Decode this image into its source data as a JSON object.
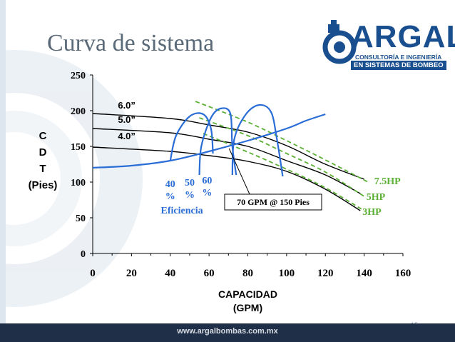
{
  "slide": {
    "title": "Curva de sistema",
    "footer_url": "www.argalbombas.com.mx",
    "page_number": "15",
    "logo": {
      "main": "ARGAL",
      "line1": "CONSULTORÍA E INGENIERÍA",
      "line2": "EN SISTEMAS DE BOMBEO"
    },
    "colors": {
      "navy": "#1f2f47",
      "brand_blue": "#1a4f8f",
      "efficiency_blue": "#2a6dd6",
      "green": "#5bb035"
    }
  },
  "chart_data": {
    "type": "line",
    "xlabel": [
      "CAPACIDAD",
      "(GPM)"
    ],
    "ylabel": [
      "C",
      "D",
      "T",
      "(Pies)"
    ],
    "xlim": [
      0,
      160
    ],
    "ylim": [
      0,
      250
    ],
    "x_ticks": [
      "0",
      "20",
      "40",
      "60",
      "80",
      "100",
      "120",
      "140",
      "160"
    ],
    "y_ticks": [
      "0",
      "50",
      "100",
      "150",
      "200",
      "250"
    ],
    "grid": false,
    "series": [
      {
        "name": "6.0”",
        "color": "#000000",
        "points": [
          [
            0,
            196
          ],
          [
            40,
            189
          ],
          [
            60,
            180
          ],
          [
            80,
            170
          ],
          [
            100,
            151
          ],
          [
            120,
            125
          ],
          [
            140,
            104
          ]
        ]
      },
      {
        "name": "5.0”",
        "color": "#000000",
        "points": [
          [
            0,
            175
          ],
          [
            40,
            169
          ],
          [
            60,
            160
          ],
          [
            80,
            150
          ],
          [
            100,
            130
          ],
          [
            120,
            110
          ],
          [
            138,
            84
          ]
        ]
      },
      {
        "name": "4.0”",
        "color": "#000000",
        "points": [
          [
            0,
            149
          ],
          [
            40,
            143
          ],
          [
            60,
            137
          ],
          [
            80,
            129
          ],
          [
            100,
            115
          ],
          [
            120,
            90
          ],
          [
            138,
            60
          ]
        ]
      },
      {
        "name": "7.5HP",
        "color": "#5bb035",
        "dashed": true,
        "points": [
          [
            53,
            213
          ],
          [
            80,
            184
          ],
          [
            100,
            158
          ],
          [
            120,
            131
          ],
          [
            142,
            100
          ]
        ]
      },
      {
        "name": "5HP",
        "color": "#5bb035",
        "dashed": true,
        "points": [
          [
            55,
            190
          ],
          [
            80,
            165
          ],
          [
            100,
            140
          ],
          [
            120,
            114
          ],
          [
            140,
            80
          ]
        ]
      },
      {
        "name": "3HP",
        "color": "#5bb035",
        "dashed": true,
        "points": [
          [
            57,
            168
          ],
          [
            80,
            142
          ],
          [
            100,
            118
          ],
          [
            120,
            92
          ],
          [
            140,
            60
          ]
        ]
      },
      {
        "name": "system",
        "color": "#2a6dd6",
        "points": [
          [
            0,
            120
          ],
          [
            20,
            123
          ],
          [
            40,
            130
          ],
          [
            60,
            143
          ],
          [
            80,
            158
          ],
          [
            100,
            175
          ],
          [
            110,
            186
          ],
          [
            120,
            195
          ]
        ]
      }
    ],
    "efficiency_curves": [
      {
        "name": "40%",
        "points": [
          [
            40,
            130
          ],
          [
            43,
            165
          ],
          [
            50,
            192
          ],
          [
            57,
            195
          ],
          [
            61,
            175
          ],
          [
            62,
            140
          ]
        ]
      },
      {
        "name": "50%",
        "points": [
          [
            55,
            110
          ],
          [
            56,
            150
          ],
          [
            61,
            190
          ],
          [
            66,
            203
          ],
          [
            71,
            196
          ],
          [
            72,
            150
          ],
          [
            74,
            110
          ]
        ]
      },
      {
        "name": "60%",
        "points": [
          [
            72,
            110
          ],
          [
            73,
            160
          ],
          [
            79,
            195
          ],
          [
            86,
            208
          ],
          [
            92,
            198
          ],
          [
            95,
            160
          ],
          [
            98,
            108
          ]
        ]
      }
    ],
    "annotations": {
      "efficiency_labels": [
        {
          "top": "40",
          "bottom": "%",
          "x": 40,
          "y": 93
        },
        {
          "top": "50",
          "bottom": "%",
          "x": 50,
          "y": 95
        },
        {
          "top": "60",
          "bottom": "%",
          "x": 59,
          "y": 98
        }
      ],
      "efficiency_title": {
        "text": "Eficiencia",
        "x": 46,
        "y": 56
      },
      "operating_point": {
        "text": "70 GPM @ 150 Pies",
        "x": 70,
        "y": 150
      },
      "hp_labels": [
        {
          "text": "7.5HP",
          "x": 152,
          "y": 97,
          "color": "#5bb035"
        },
        {
          "text": "5HP",
          "x": 146,
          "y": 75,
          "color": "#5bb035"
        },
        {
          "text": "3HP",
          "x": 144,
          "y": 54,
          "color": "#5bb035"
        }
      ],
      "impeller_labels": [
        {
          "text": "6.0”",
          "x": 13,
          "y": 203
        },
        {
          "text": "5.0”",
          "x": 13,
          "y": 183
        },
        {
          "text": "4.0”",
          "x": 13,
          "y": 160
        }
      ]
    }
  }
}
